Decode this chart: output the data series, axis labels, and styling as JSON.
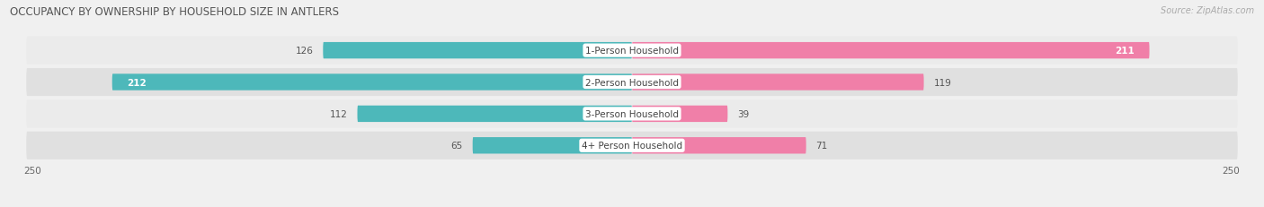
{
  "title": "OCCUPANCY BY OWNERSHIP BY HOUSEHOLD SIZE IN ANTLERS",
  "source": "Source: ZipAtlas.com",
  "categories": [
    "1-Person Household",
    "2-Person Household",
    "3-Person Household",
    "4+ Person Household"
  ],
  "owner_values": [
    126,
    212,
    112,
    65
  ],
  "renter_values": [
    211,
    119,
    39,
    71
  ],
  "owner_color": "#4db8ba",
  "renter_color": "#f07fa8",
  "axis_max": 250,
  "background_color": "#f0f0f0",
  "row_bg_light": "#e8e8e8",
  "row_bg_dark": "#d8d8d8",
  "title_fontsize": 8.5,
  "label_fontsize": 7.5,
  "source_fontsize": 7,
  "value_inside_color": "#ffffff",
  "value_outside_color": "#555555"
}
